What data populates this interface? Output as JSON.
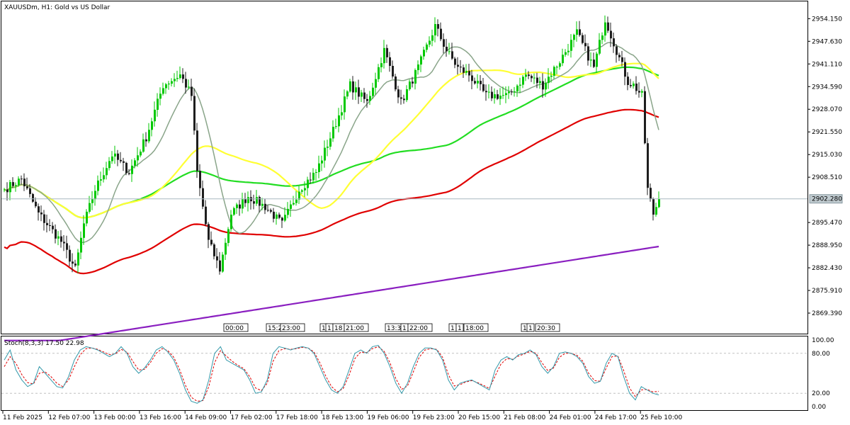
{
  "window": {
    "title": "XAUUSDm, H1:  Gold vs US Dollar",
    "symbol": "XAUUSDm",
    "timeframe": "H1"
  },
  "colors": {
    "bull": "#00c800",
    "bear": "#1e1e1e",
    "ma_gray": "#8aa58a",
    "ma_yellow": "#ffff33",
    "ma_green": "#22dd22",
    "ma_red": "#e00000",
    "ma_purple": "#8a1fc0",
    "stoch_main": "#3399aa",
    "stoch_signal": "#e00000",
    "bid_line": "#a9b8c0"
  },
  "price_axis": {
    "labels": [
      "2954.150",
      "2947.630",
      "2941.110",
      "2934.590",
      "2928.070",
      "2921.550",
      "2915.030",
      "2908.510",
      "2895.470",
      "2888.950",
      "2882.430",
      "2875.910",
      "2869.390"
    ],
    "range": [
      2864.5,
      2958.5
    ],
    "current_price": "2902.280",
    "current_value": 2902.28
  },
  "time_axis": {
    "labels": [
      "11 Feb 2025",
      "12 Feb 07:00",
      "13 Feb 00:00",
      "13 Feb 16:00",
      "14 Feb 09:00",
      "17 Feb 02:00",
      "17 Feb 18:00",
      "18 Feb 13:00",
      "19 Feb 06:00",
      "19 Feb 23:00",
      "20 Feb 15:00",
      "21 Feb 08:00",
      "24 Feb 01:00",
      "24 Feb 17:00",
      "25 Feb 10:00"
    ]
  },
  "session_markers": [
    "00:00",
    "15:2",
    "23:00",
    "1",
    "1",
    "18",
    "21:00",
    "13:3",
    "1",
    "22:00",
    "1",
    "1",
    "18:00",
    "1",
    "1",
    "20:30"
  ],
  "indicator": {
    "title": "Stoch(8,3,3) 17.50 22.98",
    "levels": [
      "100.00",
      "80.00",
      "20.00",
      "0.00"
    ],
    "main_value": 17.5,
    "signal_value": 22.98
  },
  "chart_data": {
    "type": "candlestick",
    "title": "XAUUSDm, H1:  Gold vs US Dollar",
    "ylim": [
      2864.5,
      2958.5
    ],
    "anchors": [
      [
        0,
        2905
      ],
      [
        6,
        2908
      ],
      [
        12,
        2898
      ],
      [
        20,
        2890
      ],
      [
        25,
        2882
      ],
      [
        28,
        2895
      ],
      [
        32,
        2905
      ],
      [
        38,
        2915
      ],
      [
        44,
        2910
      ],
      [
        50,
        2920
      ],
      [
        56,
        2935
      ],
      [
        62,
        2938
      ],
      [
        66,
        2932
      ],
      [
        68,
        2910
      ],
      [
        72,
        2890
      ],
      [
        76,
        2882
      ],
      [
        80,
        2898
      ],
      [
        86,
        2903
      ],
      [
        92,
        2900
      ],
      [
        98,
        2895
      ],
      [
        104,
        2905
      ],
      [
        110,
        2910
      ],
      [
        116,
        2922
      ],
      [
        122,
        2935
      ],
      [
        128,
        2930
      ],
      [
        134,
        2945
      ],
      [
        140,
        2930
      ],
      [
        146,
        2940
      ],
      [
        152,
        2952
      ],
      [
        156,
        2945
      ],
      [
        160,
        2940
      ],
      [
        164,
        2938
      ],
      [
        170,
        2932
      ],
      [
        178,
        2932
      ],
      [
        184,
        2938
      ],
      [
        190,
        2935
      ],
      [
        196,
        2942
      ],
      [
        202,
        2950
      ],
      [
        208,
        2940
      ],
      [
        212,
        2954
      ],
      [
        216,
        2945
      ],
      [
        220,
        2936
      ],
      [
        222,
        2935
      ],
      [
        225,
        2932
      ],
      [
        227,
        2905
      ],
      [
        229,
        2898
      ],
      [
        231,
        2902.28
      ]
    ],
    "stochastic": {
      "main": [
        70,
        85,
        55,
        40,
        30,
        35,
        60,
        50,
        40,
        30,
        28,
        45,
        70,
        85,
        90,
        88,
        85,
        80,
        75,
        80,
        90,
        80,
        60,
        50,
        58,
        70,
        85,
        90,
        82,
        70,
        50,
        25,
        8,
        5,
        10,
        40,
        80,
        90,
        70,
        65,
        60,
        55,
        40,
        20,
        22,
        40,
        80,
        90,
        88,
        85,
        88,
        90,
        88,
        80,
        60,
        40,
        25,
        20,
        30,
        55,
        80,
        85,
        80,
        90,
        92,
        80,
        60,
        35,
        20,
        35,
        60,
        80,
        88,
        88,
        85,
        70,
        40,
        25,
        35,
        38,
        40,
        35,
        30,
        25,
        55,
        70,
        75,
        70,
        78,
        80,
        85,
        78,
        60,
        50,
        60,
        80,
        82,
        80,
        75,
        65,
        45,
        35,
        38,
        65,
        80,
        75,
        45,
        20,
        10,
        30,
        25,
        20,
        17.5
      ],
      "signal": [
        60,
        75,
        65,
        48,
        36,
        34,
        50,
        52,
        45,
        35,
        30,
        40,
        60,
        78,
        87,
        88,
        86,
        82,
        78,
        79,
        86,
        82,
        68,
        55,
        56,
        66,
        80,
        87,
        84,
        74,
        56,
        32,
        14,
        8,
        9,
        30,
        66,
        84,
        76,
        68,
        62,
        57,
        45,
        28,
        24,
        35,
        68,
        84,
        87,
        86,
        87,
        89,
        88,
        82,
        66,
        46,
        30,
        22,
        27,
        47,
        72,
        82,
        81,
        87,
        90,
        83,
        66,
        42,
        26,
        31,
        52,
        74,
        85,
        87,
        86,
        74,
        48,
        31,
        33,
        37,
        39,
        36,
        32,
        27,
        46,
        64,
        72,
        71,
        76,
        79,
        83,
        80,
        66,
        54,
        58,
        74,
        80,
        80,
        77,
        68,
        50,
        39,
        38,
        58,
        75,
        76,
        54,
        28,
        15,
        25,
        26,
        22,
        22.98
      ]
    }
  }
}
